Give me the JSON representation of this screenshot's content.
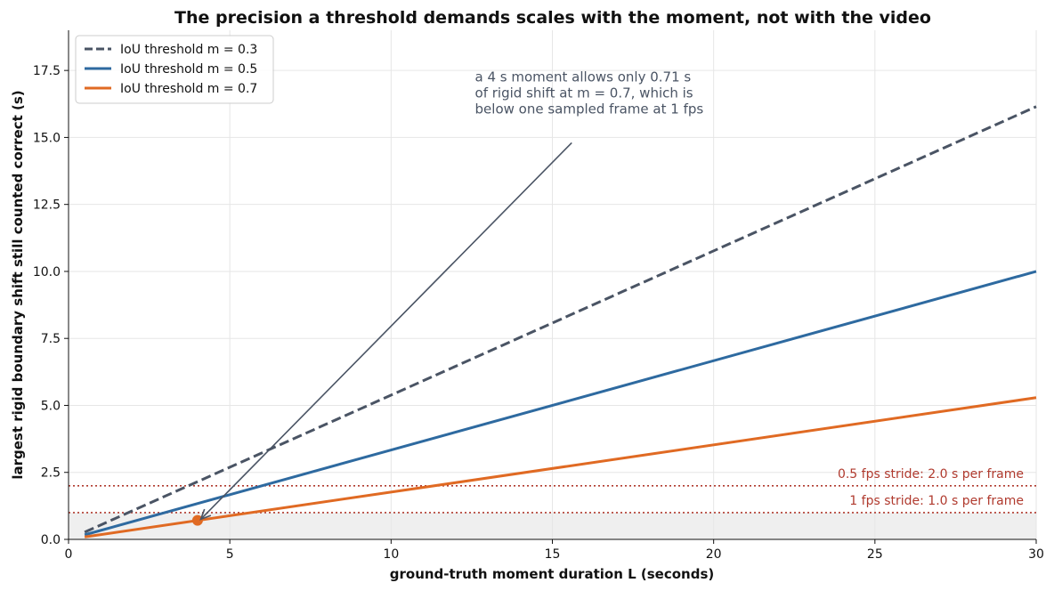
{
  "chart_data": {
    "type": "line",
    "title": "The precision a threshold demands scales with the moment, not with the video",
    "xlabel": "ground-truth moment duration L (seconds)",
    "ylabel": "largest rigid boundary shift still counted correct (s)",
    "xlim": [
      0,
      30
    ],
    "ylim": [
      0,
      19
    ],
    "xticks": [
      0,
      5,
      10,
      15,
      20,
      25,
      30
    ],
    "xtick_labels": [
      "0",
      "5",
      "10",
      "15",
      "20",
      "25",
      "30"
    ],
    "yticks": [
      0,
      2.5,
      5,
      7.5,
      10,
      12.5,
      15,
      17.5
    ],
    "ytick_labels": [
      "0.0",
      "2.5",
      "5.0",
      "7.5",
      "10.0",
      "12.5",
      "15.0",
      "17.5"
    ],
    "grid": true,
    "legend_position": "top-left",
    "series": [
      {
        "name": "IoU threshold m = 0.3",
        "color": "#4a5464",
        "dash": true,
        "x": [
          0.5,
          30
        ],
        "y": [
          0.27,
          16.15
        ]
      },
      {
        "name": "IoU threshold m = 0.5",
        "color": "#2e6aa0",
        "dash": false,
        "x": [
          0.5,
          30
        ],
        "y": [
          0.17,
          10.0
        ]
      },
      {
        "name": "IoU threshold m = 0.7",
        "color": "#e06a23",
        "dash": false,
        "x": [
          0.5,
          30
        ],
        "y": [
          0.09,
          5.29
        ]
      }
    ],
    "highlight_point": {
      "x": 4,
      "y": 0.71,
      "color": "#e06a23"
    },
    "reference_lines": [
      {
        "y": 2.0,
        "label": "0.5 fps stride: 2.0 s per frame",
        "color": "#b03a2e"
      },
      {
        "y": 1.0,
        "label": "1 fps stride: 1.0 s per frame",
        "color": "#b03a2e"
      }
    ],
    "shaded_band": {
      "y0": 0,
      "y1": 1.0,
      "color": "#efefef"
    },
    "annotation": {
      "lines": [
        "a 4 s moment allows only 0.71 s",
        "of rigid shift at m = 0.7, which is",
        "below one sampled frame at 1 fps"
      ],
      "text_anchor": {
        "x": 12.6,
        "y": 16.1
      },
      "arrow_from": {
        "x": 15.6,
        "y": 14.8
      },
      "arrow_to": {
        "x": 4.1,
        "y": 0.75
      },
      "color": "#4a5464"
    }
  }
}
